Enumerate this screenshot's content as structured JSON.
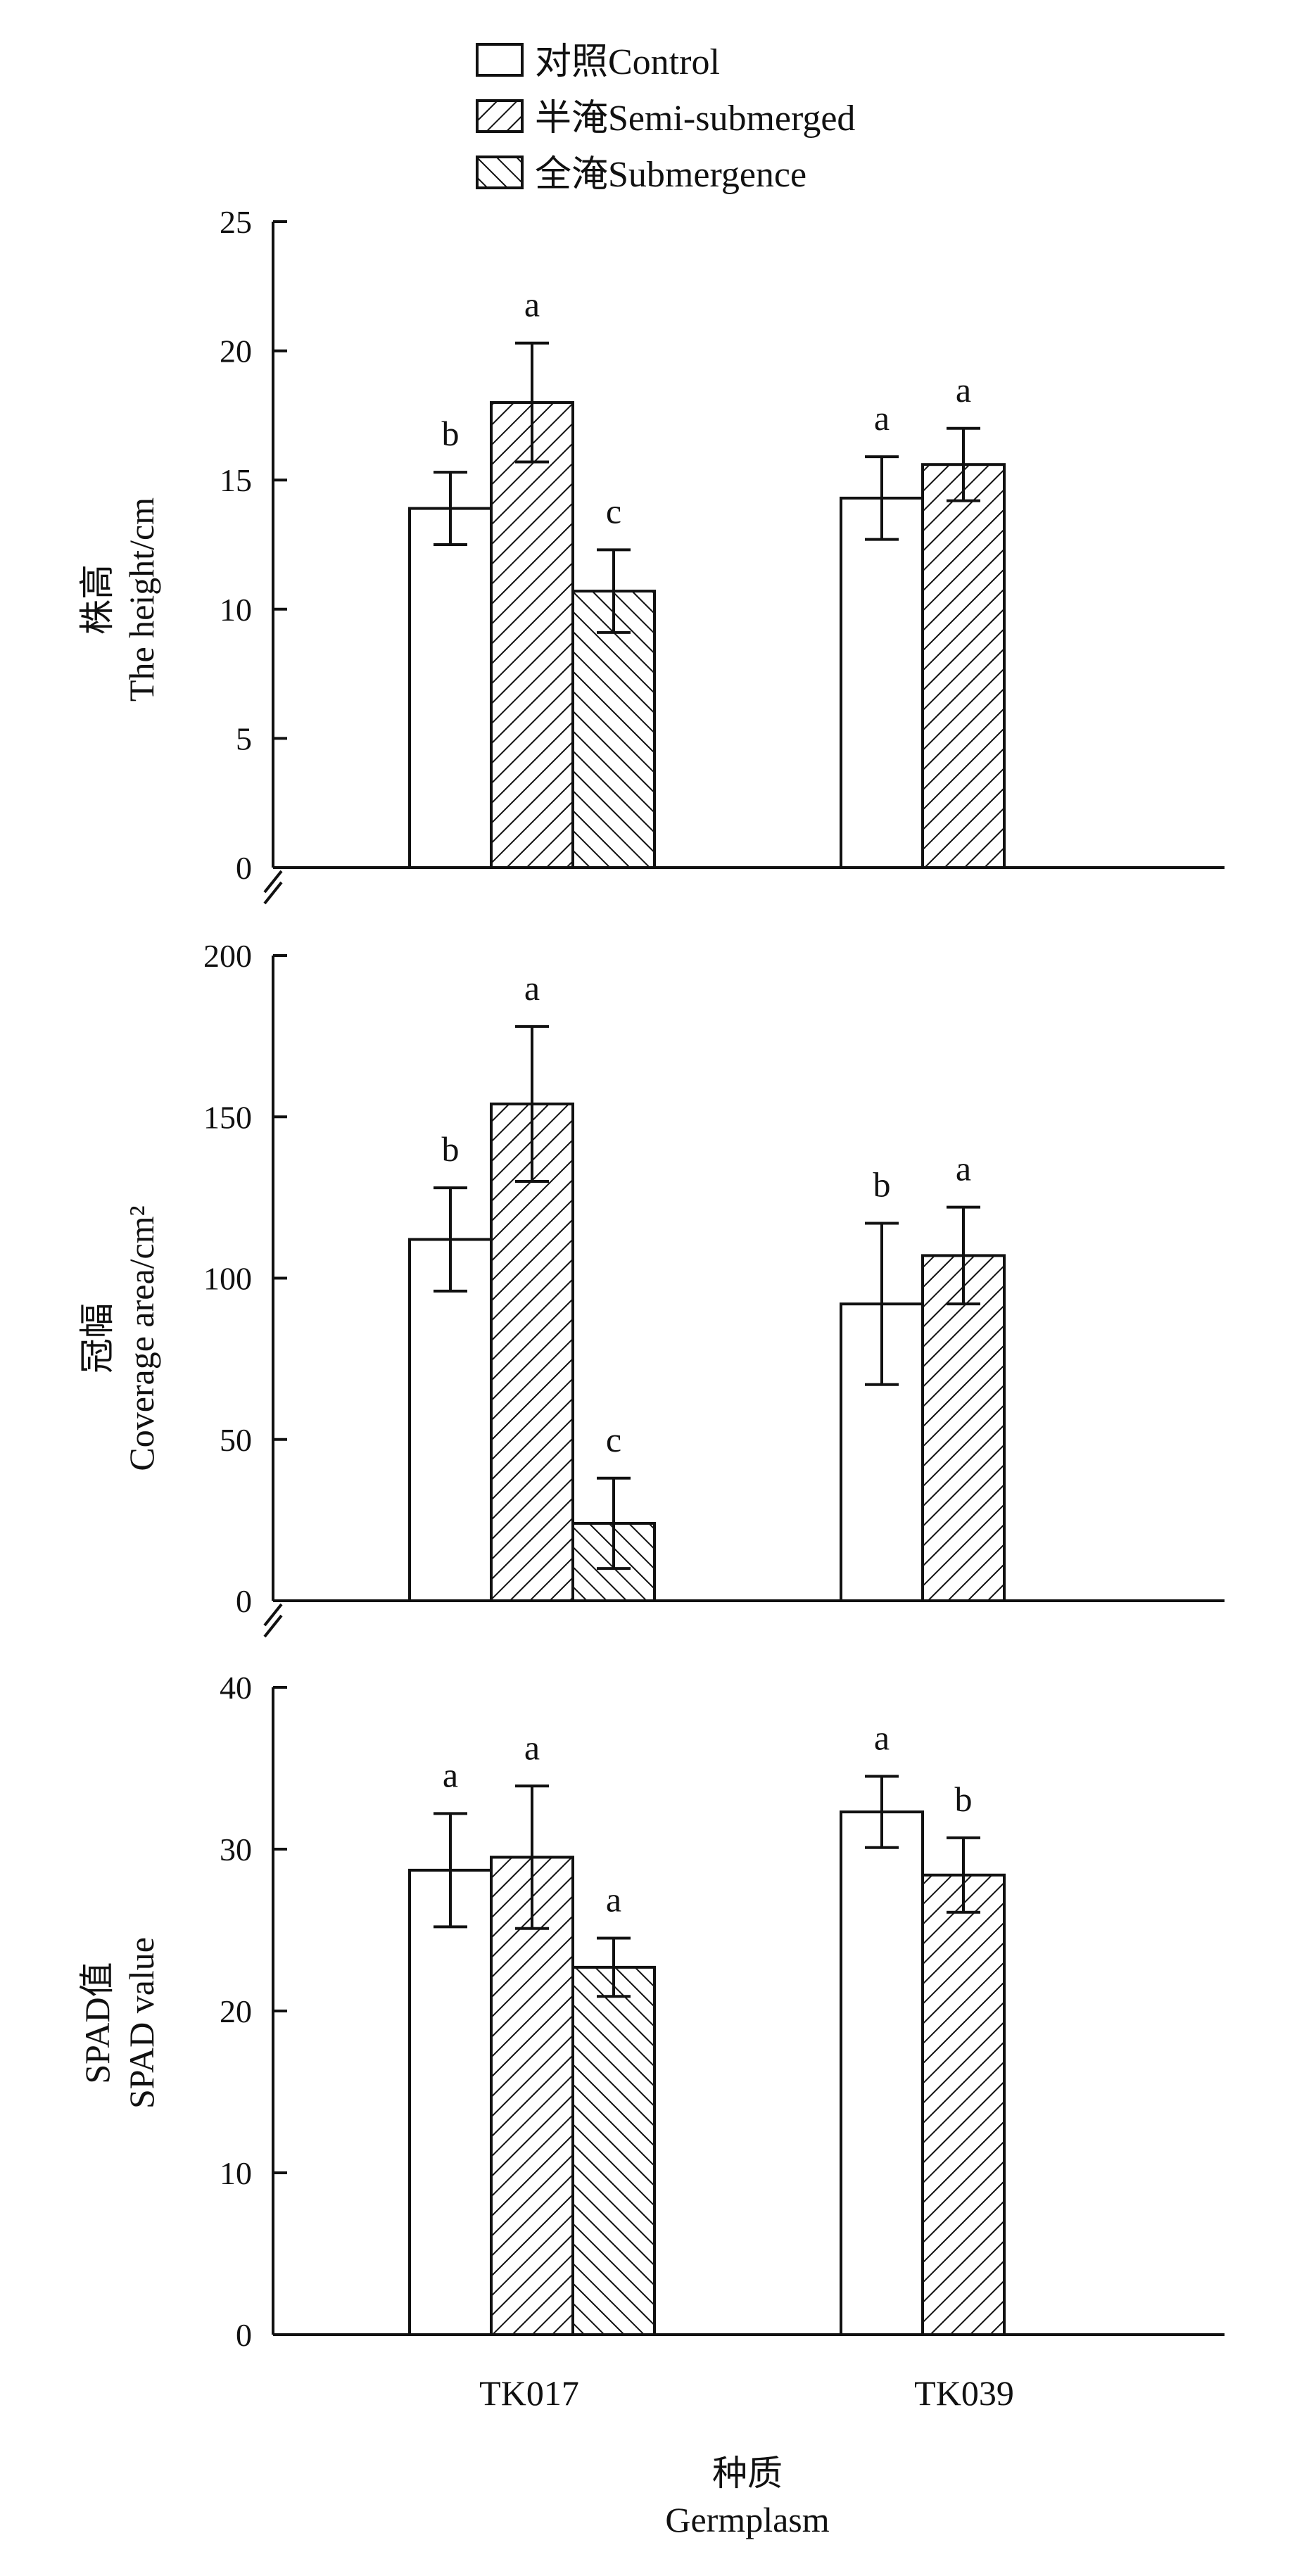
{
  "legend": [
    {
      "label": "对照Control",
      "pattern": "none"
    },
    {
      "label": "半淹Semi-submerged",
      "pattern": "hatch-right"
    },
    {
      "label": "全淹Submergence",
      "pattern": "hatch-left"
    }
  ],
  "x_axis": {
    "title_cn": "种质",
    "title_en": "Germplasm"
  },
  "chart_data": [
    {
      "type": "bar",
      "categories": [
        "TK017",
        "TK039"
      ],
      "ylabel_cn": "株高",
      "ylabel_en": "The height/cm",
      "ylim": [
        0,
        25
      ],
      "yticks": [
        0,
        5,
        10,
        15,
        20,
        25
      ],
      "series": [
        {
          "name": "对照Control",
          "values": [
            13.9,
            14.3
          ],
          "errors": [
            1.4,
            1.6
          ],
          "letters": [
            "b",
            "a"
          ]
        },
        {
          "name": "半淹Semi-submerged",
          "values": [
            18.0,
            15.6
          ],
          "errors": [
            2.3,
            1.4
          ],
          "letters": [
            "a",
            "a"
          ]
        },
        {
          "name": "全淹Submergence",
          "values": [
            10.7,
            null
          ],
          "errors": [
            1.6,
            null
          ],
          "letters": [
            "c",
            null
          ]
        }
      ]
    },
    {
      "type": "bar",
      "categories": [
        "TK017",
        "TK039"
      ],
      "ylabel_cn": "冠幅",
      "ylabel_en": "Coverage area/cm²",
      "ylim": [
        0,
        200
      ],
      "yticks": [
        0,
        50,
        100,
        150,
        200
      ],
      "series": [
        {
          "name": "对照Control",
          "values": [
            112,
            92
          ],
          "errors": [
            16,
            25
          ],
          "letters": [
            "b",
            "b"
          ]
        },
        {
          "name": "半淹Semi-submerged",
          "values": [
            154,
            107
          ],
          "errors": [
            24,
            15
          ],
          "letters": [
            "a",
            "a"
          ]
        },
        {
          "name": "全淹Submergence",
          "values": [
            24,
            null
          ],
          "errors": [
            14,
            null
          ],
          "letters": [
            "c",
            null
          ]
        }
      ]
    },
    {
      "type": "bar",
      "categories": [
        "TK017",
        "TK039"
      ],
      "ylabel_cn": "SPAD值",
      "ylabel_en": "SPAD value",
      "ylim": [
        0,
        40
      ],
      "yticks": [
        0,
        10,
        20,
        30,
        40
      ],
      "series": [
        {
          "name": "对照Control",
          "values": [
            28.7,
            32.3
          ],
          "errors": [
            3.5,
            2.2
          ],
          "letters": [
            "a",
            "a"
          ]
        },
        {
          "name": "半淹Semi-submerged",
          "values": [
            29.5,
            28.4
          ],
          "errors": [
            4.4,
            2.3
          ],
          "letters": [
            "a",
            "b"
          ]
        },
        {
          "name": "全淹Submergence",
          "values": [
            22.7,
            null
          ],
          "errors": [
            1.8,
            null
          ],
          "letters": [
            "a",
            null
          ]
        }
      ]
    }
  ]
}
